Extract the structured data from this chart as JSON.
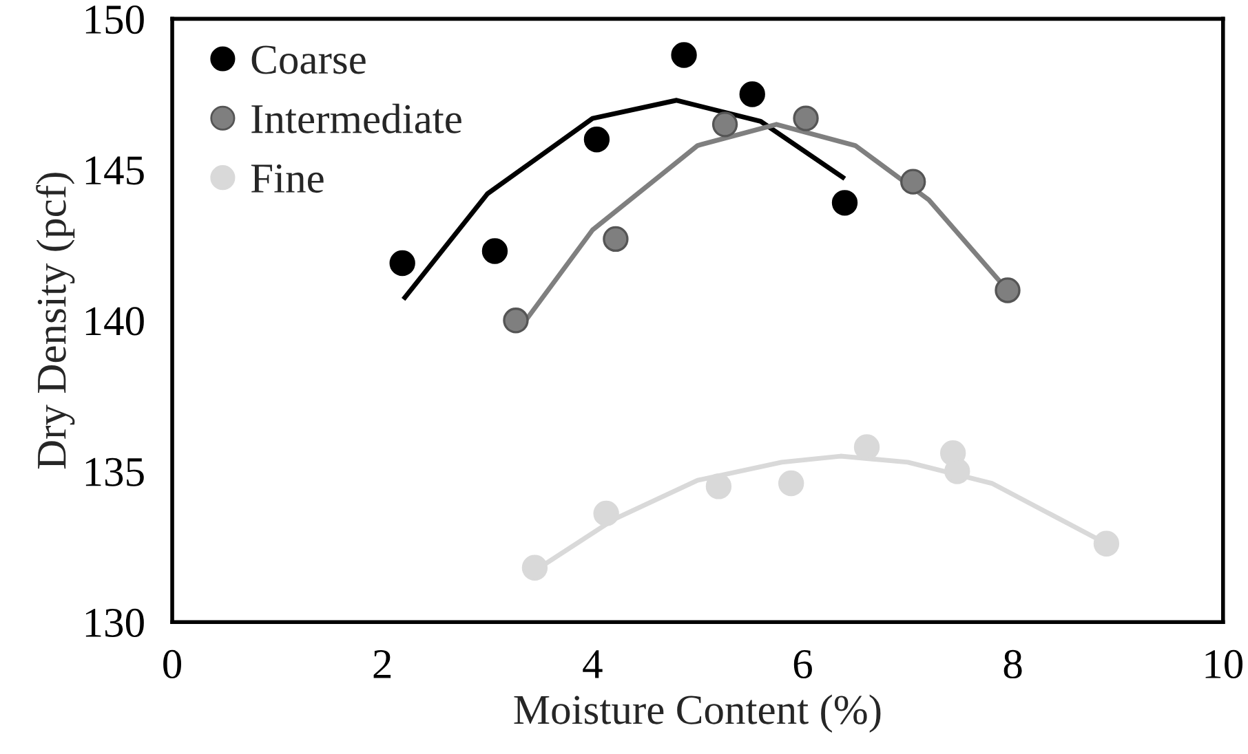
{
  "chart_data": {
    "type": "scatter",
    "xlabel": "Moisture Content (%)",
    "ylabel": "Dry Density (pcf)",
    "xlim": [
      0,
      10
    ],
    "xticks": [
      0,
      2,
      4,
      6,
      8,
      10
    ],
    "ylim": [
      130,
      150
    ],
    "yticks": [
      130,
      135,
      140,
      145,
      150
    ],
    "grid": false,
    "legend": "top left",
    "marker": "circle",
    "series": [
      {
        "name": "Coarse",
        "color": "#000000",
        "x": [
          2.19,
          3.07,
          4.04,
          4.87,
          5.52,
          6.4
        ],
        "values": [
          141.9,
          142.3,
          146.0,
          148.8,
          147.5,
          143.9
        ]
      },
      {
        "name": "Intermediate",
        "color": "#7f7f7f",
        "x": [
          3.27,
          4.22,
          5.26,
          6.03,
          7.05,
          7.95
        ],
        "values": [
          140.0,
          142.7,
          146.5,
          146.7,
          144.6,
          141.0
        ]
      },
      {
        "name": "Fine",
        "color": "#d9d9d9",
        "x": [
          3.45,
          4.13,
          5.2,
          5.89,
          6.61,
          7.43,
          7.47,
          8.89
        ],
        "values": [
          131.8,
          133.6,
          134.5,
          134.6,
          135.8,
          135.6,
          135.0,
          132.6
        ]
      },
      {
        "type": "line",
        "color": "#000000",
        "marker": "none",
        "x": [
          2.2,
          3.0,
          4.0,
          4.8,
          5.6,
          6.4
        ],
        "values": [
          140.7,
          144.2,
          146.7,
          147.3,
          146.6,
          144.7
        ]
      },
      {
        "type": "line",
        "color": "#7f7f7f",
        "marker": "none",
        "x": [
          3.3,
          4.0,
          5.0,
          5.75,
          6.5,
          7.2,
          7.95
        ],
        "values": [
          139.7,
          143.0,
          145.8,
          146.5,
          145.8,
          144.0,
          141.0
        ]
      },
      {
        "type": "line",
        "color": "#d9d9d9",
        "marker": "none",
        "x": [
          3.45,
          4.2,
          5.0,
          5.8,
          6.36,
          7.0,
          7.8,
          8.89
        ],
        "values": [
          131.7,
          133.4,
          134.7,
          135.3,
          135.5,
          135.3,
          134.6,
          132.6
        ]
      }
    ]
  }
}
